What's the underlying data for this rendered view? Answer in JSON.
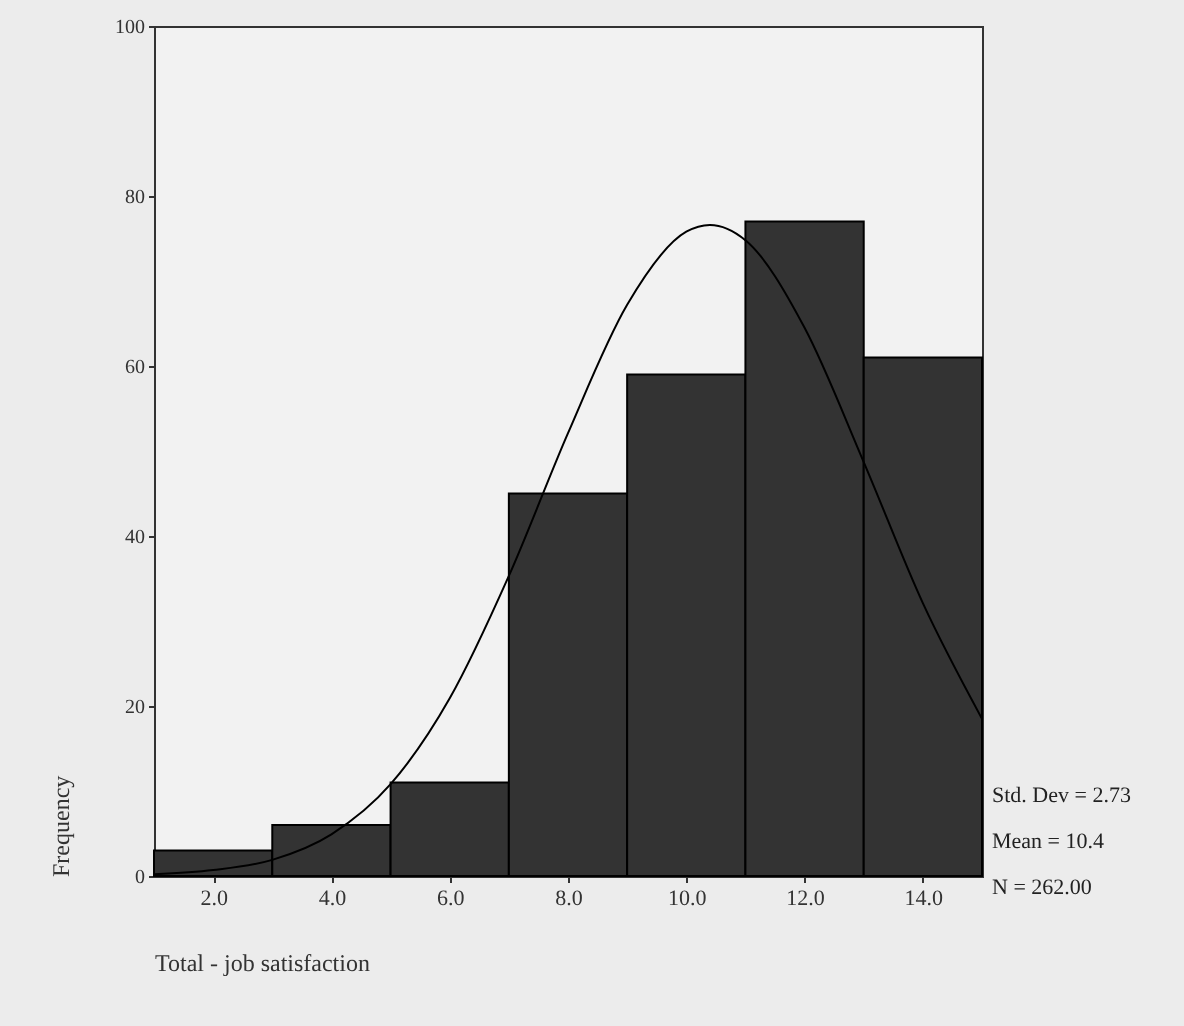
{
  "chart_data": {
    "type": "histogram",
    "xlabel": "Total - job satisfaction",
    "ylabel": "Frequency",
    "bins": [
      1,
      3,
      5,
      7,
      9,
      11,
      13,
      15
    ],
    "values": [
      3,
      6,
      11,
      45,
      59,
      77,
      61
    ],
    "color": "#333333",
    "series": [
      {
        "type": "line",
        "color": "#000000",
        "x": [
          1,
          2,
          3,
          4,
          5,
          6,
          7,
          8,
          9,
          10,
          10.4,
          11,
          12,
          13,
          14,
          15
        ],
        "values": [
          0.2,
          0.7,
          1.9,
          4.9,
          10.8,
          20.9,
          35.3,
          52.1,
          67.2,
          75.8,
          76.6,
          74.8,
          64.5,
          48.7,
          32.1,
          18.5
        ]
      }
    ],
    "xlim": [
      1,
      15
    ],
    "xticks": [
      {
        "value": 2,
        "label": "2.0"
      },
      {
        "value": 4,
        "label": "4.0"
      },
      {
        "value": 6,
        "label": "6.0"
      },
      {
        "value": 8,
        "label": "8.0"
      },
      {
        "value": 10,
        "label": "10.0"
      },
      {
        "value": 12,
        "label": "12.0"
      },
      {
        "value": 14,
        "label": "14.0"
      }
    ],
    "ylim": [
      0,
      100
    ],
    "yticks": [
      0,
      20,
      40,
      60,
      80,
      100
    ],
    "grid": false,
    "annotations": [
      "Std. Dev = 2.73",
      "Mean = 10.4",
      "N = 262.00"
    ]
  }
}
